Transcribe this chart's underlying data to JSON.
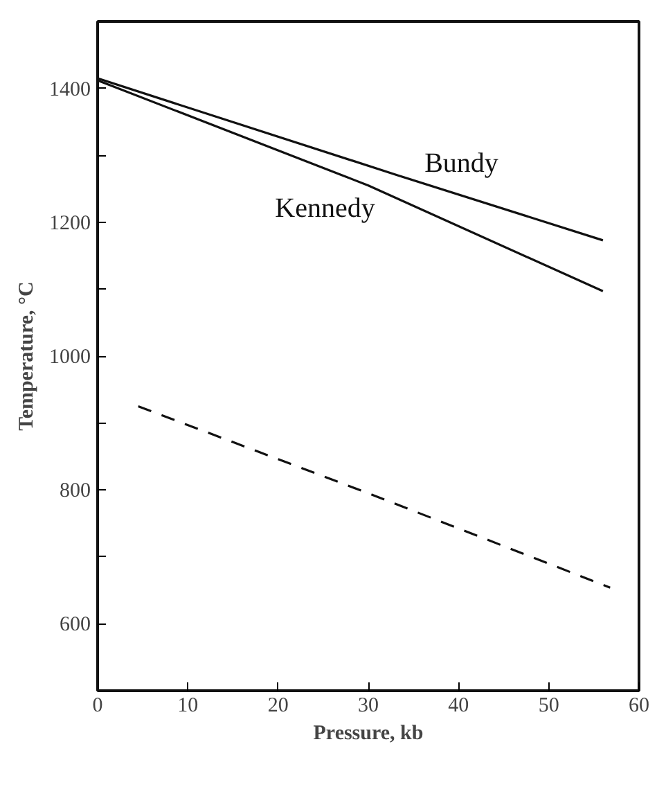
{
  "chart_data": {
    "type": "line",
    "xlabel": "Pressure, kb",
    "ylabel": "Temperature, °C",
    "xlim": [
      0,
      60
    ],
    "ylim": [
      500,
      1500
    ],
    "xticks": [
      0,
      10,
      20,
      30,
      40,
      50,
      60
    ],
    "yticks": [
      {
        "value": 600,
        "label": "600"
      },
      {
        "value": 700,
        "label": null
      },
      {
        "value": 800,
        "label": "800"
      },
      {
        "value": 900,
        "label": null
      },
      {
        "value": 1000,
        "label": "1000"
      },
      {
        "value": 1100,
        "label": null
      },
      {
        "value": 1200,
        "label": "1200"
      },
      {
        "value": 1300,
        "label": null
      },
      {
        "value": 1400,
        "label": "1400"
      }
    ],
    "grid": false,
    "marker": "none",
    "series": [
      {
        "name": "Bundy",
        "color": "#111111",
        "line_style": "solid",
        "x": [
          0,
          33.3,
          56
        ],
        "values": [
          1415,
          1270,
          1173
        ]
      },
      {
        "name": "Kennedy",
        "color": "#111111",
        "line_style": "solid",
        "x": [
          0,
          30,
          56
        ],
        "values": [
          1412,
          1255,
          1097
        ]
      },
      {
        "color": "#111111",
        "line_style": "dashed",
        "x": [
          4.5,
          30.2,
          56.8
        ],
        "values": [
          925,
          794,
          654
        ]
      }
    ]
  }
}
